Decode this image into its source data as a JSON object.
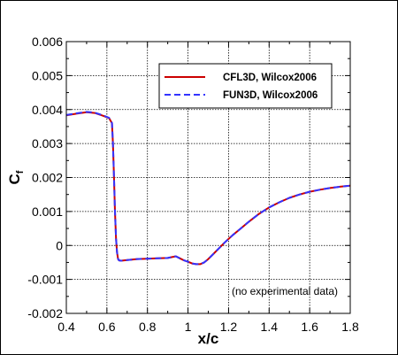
{
  "chart_data": {
    "type": "line",
    "xlabel": "x/c",
    "ylabel": "C",
    "ylabel_sub": "f",
    "xlim": [
      0.4,
      1.8
    ],
    "ylim": [
      -0.002,
      0.006
    ],
    "xticks": [
      "0.4",
      "0.6",
      "0.8",
      "1",
      "1.2",
      "1.4",
      "1.6",
      "1.8"
    ],
    "yticks": [
      "-0.002",
      "-0.001",
      "0",
      "0.001",
      "0.002",
      "0.003",
      "0.004",
      "0.005",
      "0.006"
    ],
    "grid": true,
    "legend_position": "top-right",
    "annotation": "(no experimental data)",
    "series": [
      {
        "name": "CFL3D, Wilcox2006",
        "color": "#cc0000",
        "style": "solid",
        "x": [
          0.4,
          0.45,
          0.5,
          0.54,
          0.58,
          0.61,
          0.625,
          0.63,
          0.635,
          0.64,
          0.645,
          0.65,
          0.655,
          0.66,
          0.67,
          0.7,
          0.75,
          0.8,
          0.85,
          0.9,
          0.94,
          0.96,
          0.98,
          1.0,
          1.02,
          1.04,
          1.06,
          1.08,
          1.1,
          1.12,
          1.15,
          1.18,
          1.22,
          1.26,
          1.3,
          1.35,
          1.4,
          1.45,
          1.5,
          1.55,
          1.6,
          1.65,
          1.7,
          1.75,
          1.8
        ],
        "y": [
          0.00383,
          0.00388,
          0.00392,
          0.0039,
          0.00382,
          0.00375,
          0.0036,
          0.003,
          0.002,
          0.001,
          0.0002,
          -0.0002,
          -0.0004,
          -0.00044,
          -0.00045,
          -0.00043,
          -0.0004,
          -0.00039,
          -0.00038,
          -0.00037,
          -0.00032,
          -0.00038,
          -0.00044,
          -0.00048,
          -0.00053,
          -0.00055,
          -0.00055,
          -0.0005,
          -0.0004,
          -0.00028,
          -0.0001,
          8e-05,
          0.0003,
          0.0005,
          0.0007,
          0.00093,
          0.00112,
          0.00127,
          0.0014,
          0.0015,
          0.00158,
          0.00164,
          0.00169,
          0.00173,
          0.00176
        ]
      },
      {
        "name": "FUN3D, Wilcox2006",
        "color": "#3333ff",
        "style": "dashed",
        "x": [
          0.4,
          0.45,
          0.5,
          0.54,
          0.58,
          0.61,
          0.625,
          0.63,
          0.635,
          0.64,
          0.645,
          0.65,
          0.655,
          0.66,
          0.67,
          0.7,
          0.75,
          0.8,
          0.85,
          0.9,
          0.94,
          0.96,
          0.98,
          1.0,
          1.02,
          1.04,
          1.06,
          1.08,
          1.1,
          1.12,
          1.15,
          1.18,
          1.22,
          1.26,
          1.3,
          1.35,
          1.4,
          1.45,
          1.5,
          1.55,
          1.6,
          1.65,
          1.7,
          1.75,
          1.8
        ],
        "y": [
          0.00384,
          0.00389,
          0.00393,
          0.00391,
          0.00383,
          0.00376,
          0.00361,
          0.003,
          0.002,
          0.001,
          0.0002,
          -0.0002,
          -0.0004,
          -0.00044,
          -0.00045,
          -0.00043,
          -0.0004,
          -0.00039,
          -0.00038,
          -0.00037,
          -0.00032,
          -0.00038,
          -0.00044,
          -0.00048,
          -0.00053,
          -0.00055,
          -0.00055,
          -0.0005,
          -0.0004,
          -0.00028,
          -0.0001,
          8e-05,
          0.0003,
          0.0005,
          0.0007,
          0.00093,
          0.00112,
          0.00127,
          0.0014,
          0.0015,
          0.00158,
          0.00164,
          0.00169,
          0.00173,
          0.00176
        ]
      }
    ]
  }
}
